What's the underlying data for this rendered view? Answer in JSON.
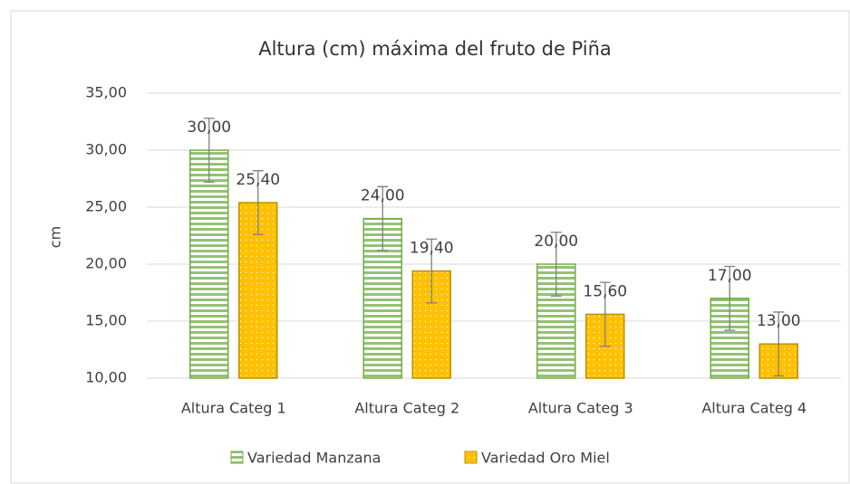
{
  "chart_data": {
    "type": "bar",
    "title": "Altura (cm) máxima del fruto de Piña",
    "y_label": "cm",
    "categories": [
      "Altura Categ 1",
      "Altura Categ 2",
      "Altura Categ 3",
      "Altura Categ 4"
    ],
    "series": [
      {
        "name": "Variedad Manzana",
        "color": "#70ad47",
        "values": [
          30,
          24,
          20,
          17
        ],
        "errors": [
          2.8,
          2.8,
          2.8,
          2.8
        ],
        "value_labels": [
          "30,00",
          "24,00",
          "20,00",
          "17,00"
        ]
      },
      {
        "name": "Variedad Oro Miel",
        "color": "#ffc000",
        "values": [
          25.4,
          19.4,
          15.6,
          13
        ],
        "errors": [
          2.8,
          2.8,
          2.8,
          2.8
        ],
        "value_labels": [
          "25,40",
          "19,40",
          "15,60",
          "13,00"
        ]
      }
    ],
    "ylim": [
      10,
      35
    ],
    "yticks": [
      {
        "value": 10,
        "label": "10,00"
      },
      {
        "value": 15,
        "label": "15,00"
      },
      {
        "value": 20,
        "label": "20,00"
      },
      {
        "value": 25,
        "label": "25,00"
      },
      {
        "value": 30,
        "label": "30,00"
      },
      {
        "value": 35,
        "label": "35,00"
      }
    ],
    "grid": true,
    "legend": "bottom"
  }
}
